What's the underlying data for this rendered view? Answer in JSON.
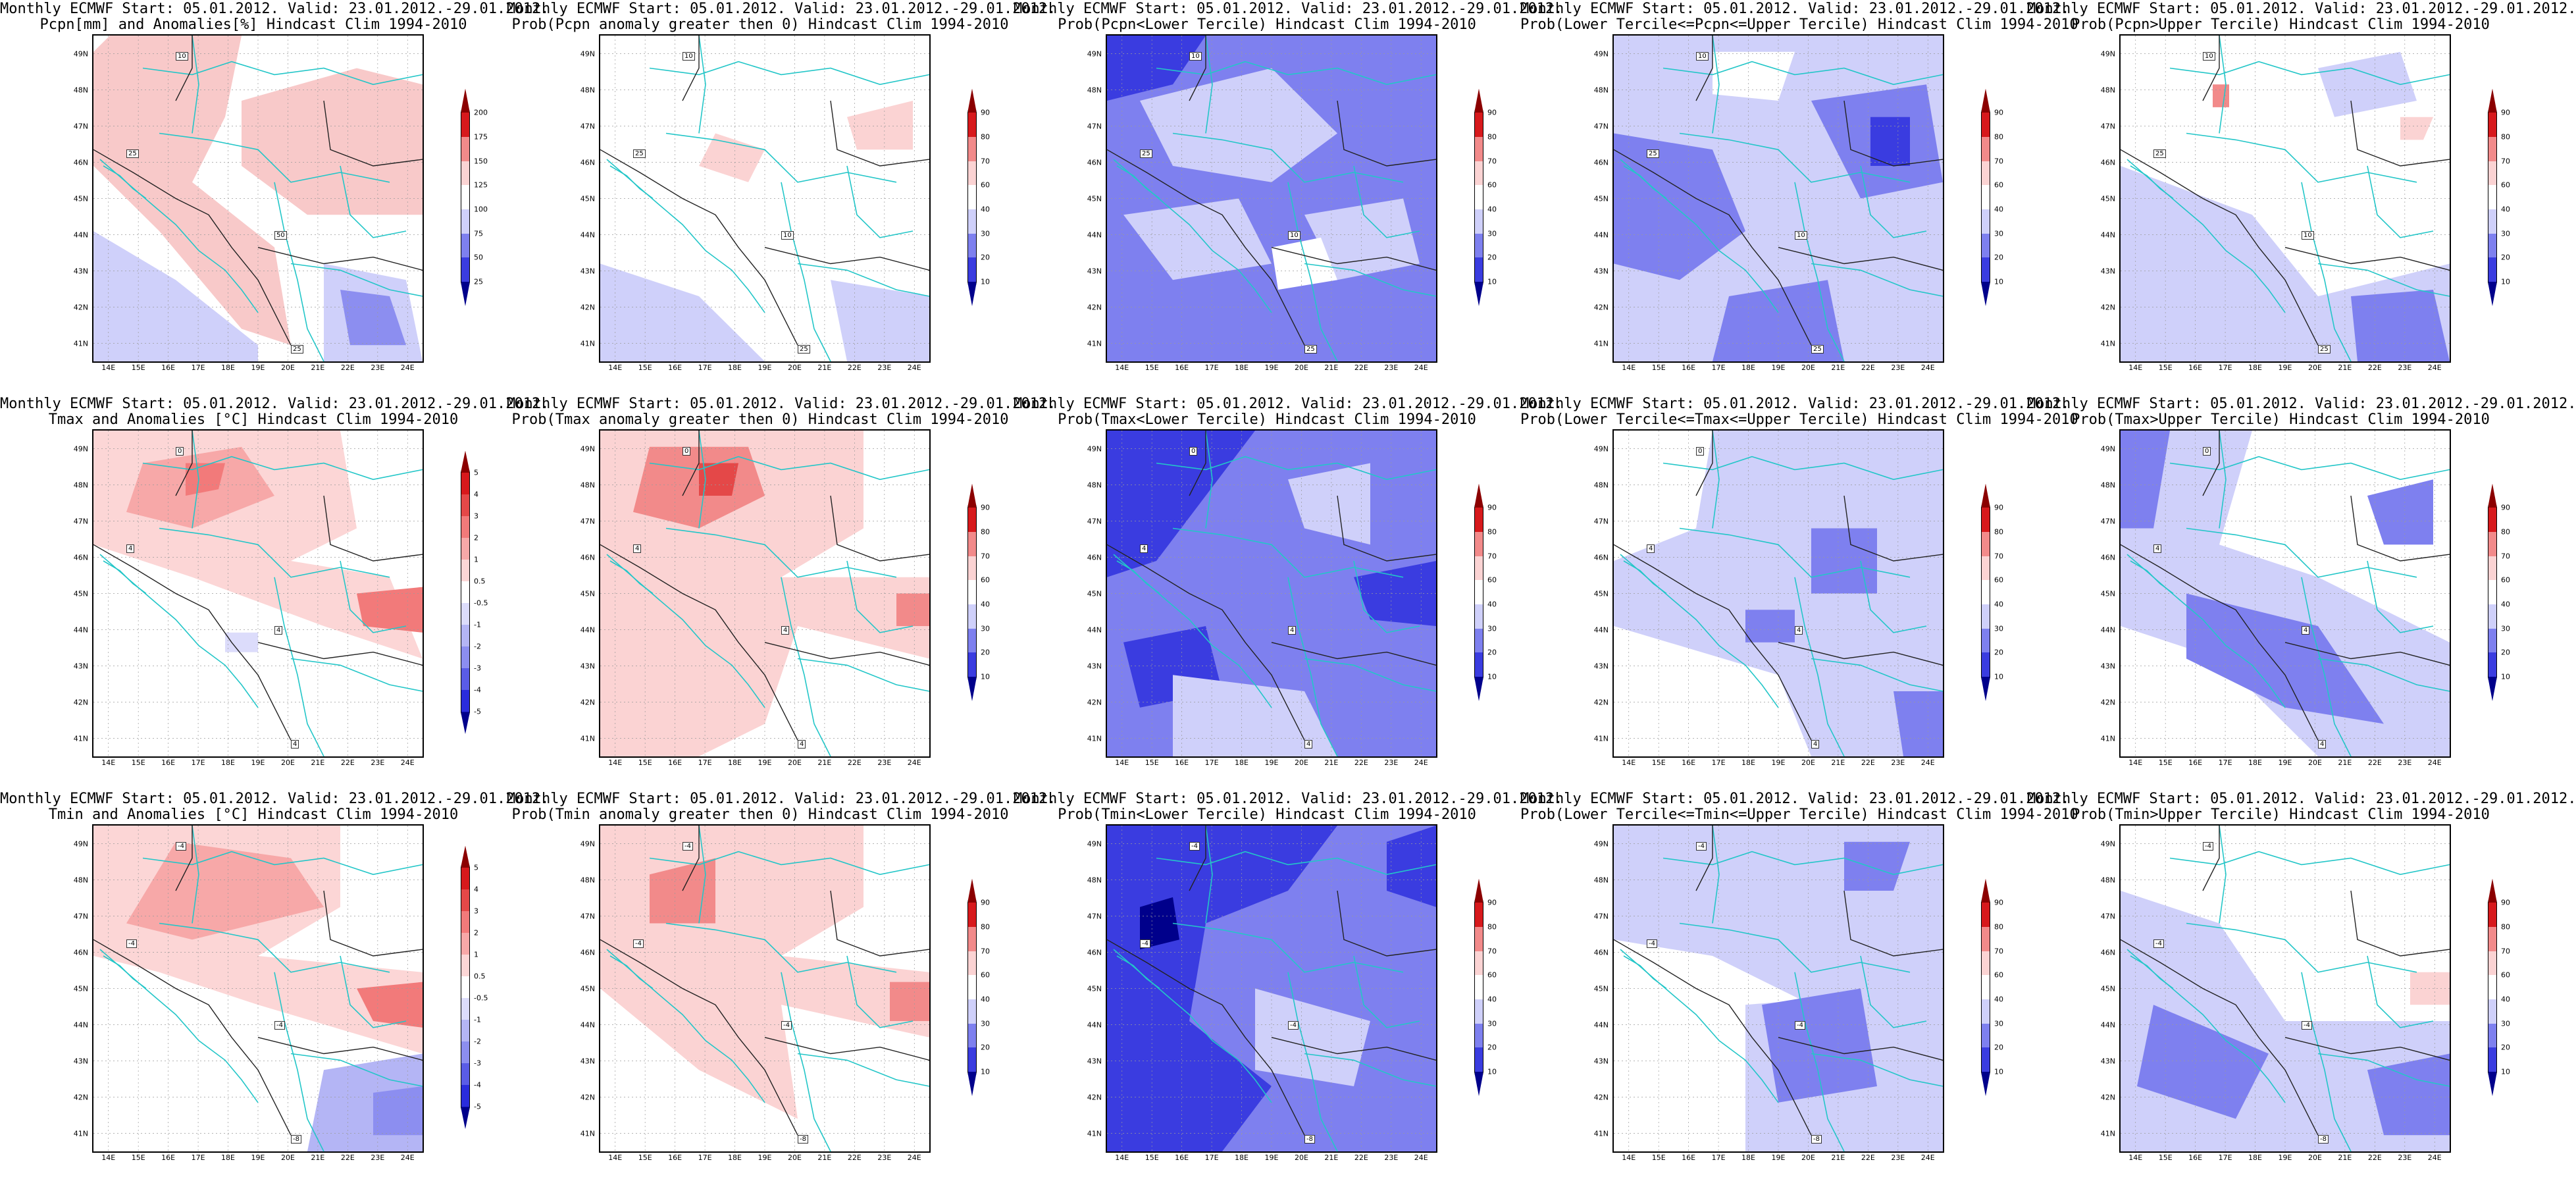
{
  "colors": {
    "ocean": "#ffffff",
    "coast": "#23c6c8",
    "contour": "#222222",
    "grid": "#9a9a9a"
  },
  "lat_ticks": [
    "49N",
    "48N",
    "47N",
    "46N",
    "45N",
    "44N",
    "43N",
    "42N",
    "41N"
  ],
  "lon_ticks": [
    "14E",
    "15E",
    "16E",
    "17E",
    "18E",
    "19E",
    "20E",
    "21E",
    "22E",
    "23E",
    "24E"
  ],
  "colorbars": {
    "pcpn": {
      "labels": [
        "200",
        "175",
        "150",
        "125",
        "100",
        "75",
        "50",
        "25"
      ],
      "colors": [
        "#8b0000",
        "#d7191c",
        "#f28a8a",
        "#fbd3d3",
        "#ffffff",
        "#cfd0fa",
        "#7e80ef",
        "#3a3ce0",
        "#00008b"
      ]
    },
    "tanom": {
      "labels": [
        "5",
        "4",
        "3",
        "2",
        "1",
        "0.5",
        "-0.5",
        "-1",
        "-2",
        "-3",
        "-4",
        "-5"
      ],
      "colors": [
        "#8b0000",
        "#d7191c",
        "#e44848",
        "#f27a7a",
        "#f7a8a8",
        "#fcd6d6",
        "#ffffff",
        "#dcdcfb",
        "#b4b5f5",
        "#8c8ef0",
        "#5a5ce6",
        "#2a2cdc",
        "#00008b"
      ]
    },
    "prob": {
      "labels": [
        "90",
        "80",
        "70",
        "60",
        "40",
        "30",
        "20",
        "10"
      ],
      "colors": [
        "#8b0000",
        "#d7191c",
        "#f28a8a",
        "#fbd3d3",
        "#ffffff",
        "#cfd0fa",
        "#7e80ef",
        "#3a3ce0",
        "#00008b"
      ]
    }
  },
  "panels": [
    {
      "title1": "Monthly ECMWF Start: 05.01.2012. Valid: 23.01.2012.-29.01.2012.",
      "title2": "Pcpn[mm] and Anomalies[%] Hindcast Clim 1994-2010",
      "cbar": "pcpn",
      "labels": [
        "10",
        "25",
        "50",
        "25"
      ]
    },
    {
      "title1": "Monthly ECMWF Start: 05.01.2012. Valid: 23.01.2012.-29.01.2012.",
      "title2": "Prob(Pcpn anomaly greater then 0) Hindcast Clim 1994-2010",
      "cbar": "prob",
      "labels": [
        "10",
        "25",
        "10",
        "25"
      ]
    },
    {
      "title1": "Monthly ECMWF Start: 05.01.2012. Valid: 23.01.2012.-29.01.2012.",
      "title2": "Prob(Pcpn<Lower Tercile) Hindcast Clim 1994-2010",
      "cbar": "prob",
      "labels": [
        "10",
        "25",
        "10",
        "25"
      ]
    },
    {
      "title1": "Monthly ECMWF Start: 05.01.2012. Valid: 23.01.2012.-29.01.2012.",
      "title2": "Prob(Lower Tercile<=Pcpn<=Upper Tercile) Hindcast Clim 1994-2010",
      "cbar": "prob",
      "labels": [
        "10",
        "25",
        "10",
        "25"
      ]
    },
    {
      "title1": "Monthly ECMWF Start: 05.01.2012. Valid: 23.01.2012.-29.01.2012.",
      "title2": "Prob(Pcpn>Upper Tercile) Hindcast Clim 1994-2010",
      "cbar": "prob",
      "labels": [
        "10",
        "25",
        "10",
        "25"
      ]
    },
    {
      "title1": "Monthly ECMWF Start: 05.01.2012. Valid: 23.01.2012.-29.01.2012.",
      "title2": "Tmax and Anomalies [°C] Hindcast Clim 1994-2010",
      "cbar": "tanom",
      "labels": [
        "0",
        "4",
        "4",
        "4"
      ]
    },
    {
      "title1": "Monthly ECMWF Start: 05.01.2012. Valid: 23.01.2012.-29.01.2012.",
      "title2": "Prob(Tmax anomaly greater then 0) Hindcast Clim 1994-2010",
      "cbar": "prob",
      "labels": [
        "0",
        "4",
        "4",
        "4"
      ]
    },
    {
      "title1": "Monthly ECMWF Start: 05.01.2012. Valid: 23.01.2012.-29.01.2012.",
      "title2": "Prob(Tmax<Lower Tercile) Hindcast Clim 1994-2010",
      "cbar": "prob",
      "labels": [
        "0",
        "4",
        "4",
        "4"
      ]
    },
    {
      "title1": "Monthly ECMWF Start: 05.01.2012. Valid: 23.01.2012.-29.01.2012.",
      "title2": "Prob(Lower Tercile<=Tmax<=Upper Tercile) Hindcast Clim 1994-2010",
      "cbar": "prob",
      "labels": [
        "0",
        "4",
        "4",
        "4"
      ]
    },
    {
      "title1": "Monthly ECMWF Start: 05.01.2012. Valid: 23.01.2012.-29.01.2012.",
      "title2": "Prob(Tmax>Upper Tercile) Hindcast Clim 1994-2010",
      "cbar": "prob",
      "labels": [
        "0",
        "4",
        "4",
        "4"
      ]
    },
    {
      "title1": "Monthly ECMWF Start: 05.01.2012. Valid: 23.01.2012.-29.01.2012.",
      "title2": "Tmin and Anomalies [°C] Hindcast Clim 1994-2010",
      "cbar": "tanom",
      "labels": [
        "-4",
        "-4",
        "-4",
        "-8"
      ]
    },
    {
      "title1": "Monthly ECMWF Start: 05.01.2012. Valid: 23.01.2012.-29.01.2012.",
      "title2": "Prob(Tmin anomaly greater then 0) Hindcast Clim 1994-2010",
      "cbar": "prob",
      "labels": [
        "-4",
        "-4",
        "-4",
        "-8"
      ]
    },
    {
      "title1": "Monthly ECMWF Start: 05.01.2012. Valid: 23.01.2012.-29.01.2012.",
      "title2": "Prob(Tmin<Lower Tercile) Hindcast Clim 1994-2010",
      "cbar": "prob",
      "labels": [
        "-4",
        "-4",
        "-4",
        "-8"
      ]
    },
    {
      "title1": "Monthly ECMWF Start: 05.01.2012. Valid: 23.01.2012.-29.01.2012.",
      "title2": "Prob(Lower Tercile<=Tmin<=Upper Tercile) Hindcast Clim 1994-2010",
      "cbar": "prob",
      "labels": [
        "-4",
        "-4",
        "-4",
        "-8"
      ]
    },
    {
      "title1": "Monthly ECMWF Start: 05.01.2012. Valid: 23.01.2012.-29.01.2012.",
      "title2": "Prob(Tmin>Upper Tercile) Hindcast Clim 1994-2010",
      "cbar": "prob",
      "labels": [
        "-4",
        "-4",
        "-4",
        "-8"
      ]
    }
  ]
}
